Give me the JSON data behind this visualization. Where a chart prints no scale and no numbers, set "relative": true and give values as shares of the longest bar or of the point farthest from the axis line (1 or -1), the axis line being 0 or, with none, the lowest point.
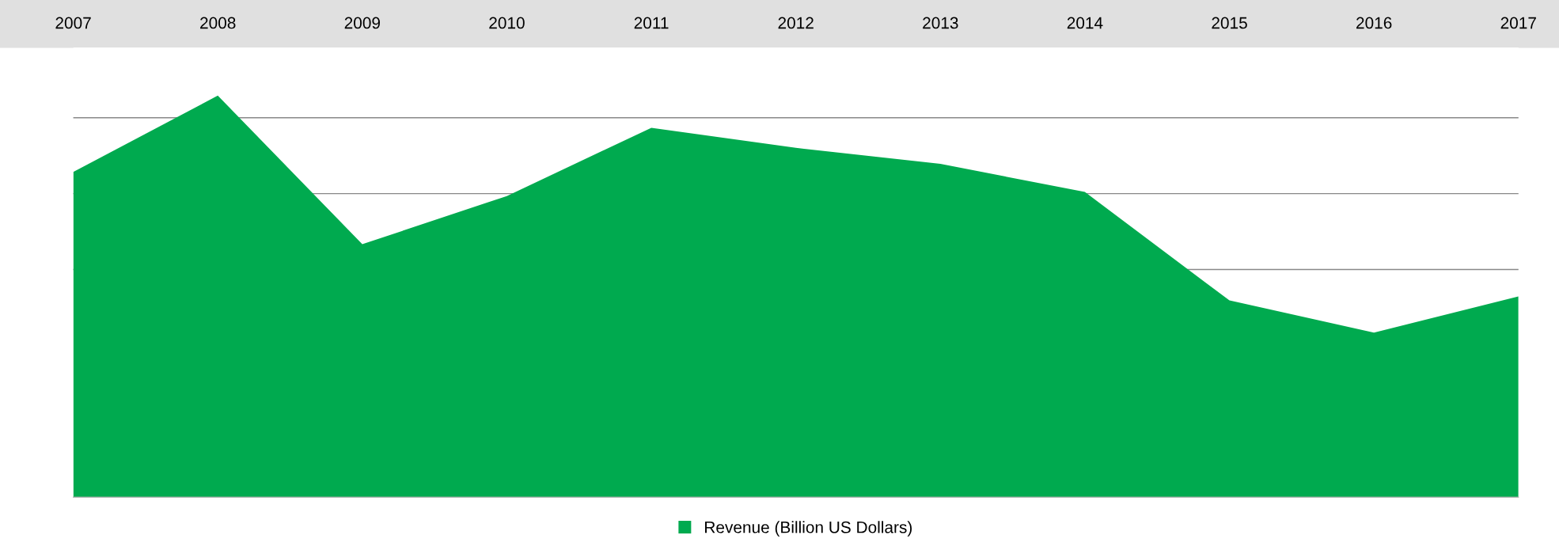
{
  "chart_data": {
    "type": "area",
    "relative": true,
    "categories": [
      "2007",
      "2008",
      "2009",
      "2010",
      "2011",
      "2012",
      "2013",
      "2014",
      "2015",
      "2016",
      "2017"
    ],
    "series": [
      {
        "name": "Revenue (Billion US Dollars)",
        "color": "#00aa4f",
        "values": [
          0.81,
          1,
          0.63,
          0.75,
          0.92,
          0.87,
          0.83,
          0.76,
          0.49,
          0.41,
          0.5
        ]
      }
    ],
    "grid": "y",
    "legend": "bottom"
  }
}
